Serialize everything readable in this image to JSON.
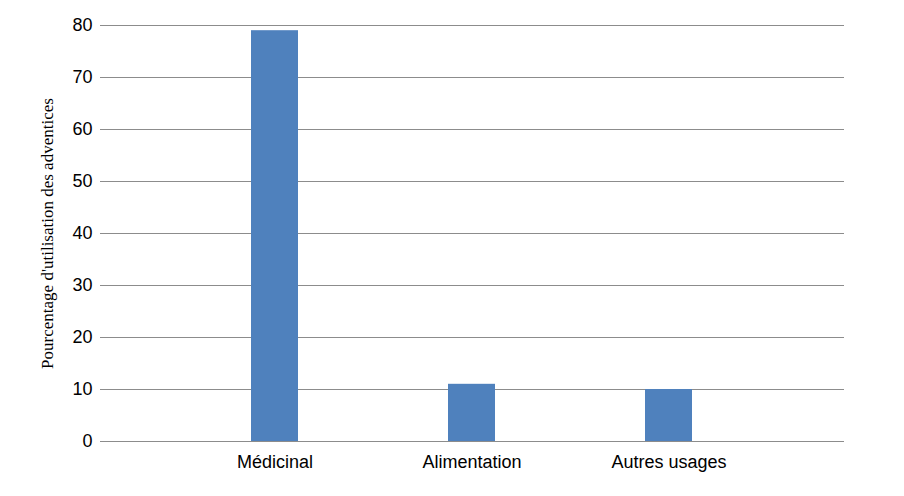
{
  "chart_data": {
    "type": "bar",
    "y_label": "Pourcentage d'utilisation des adventices",
    "categories": [
      "Médicinal",
      "Alimentation",
      "Autres usages"
    ],
    "values": [
      79,
      11,
      10
    ],
    "color": "#4f81bd",
    "ylim": [
      0,
      80
    ],
    "yticks": [
      0,
      10,
      20,
      30,
      40,
      50,
      60,
      70,
      80
    ],
    "grid": true
  }
}
